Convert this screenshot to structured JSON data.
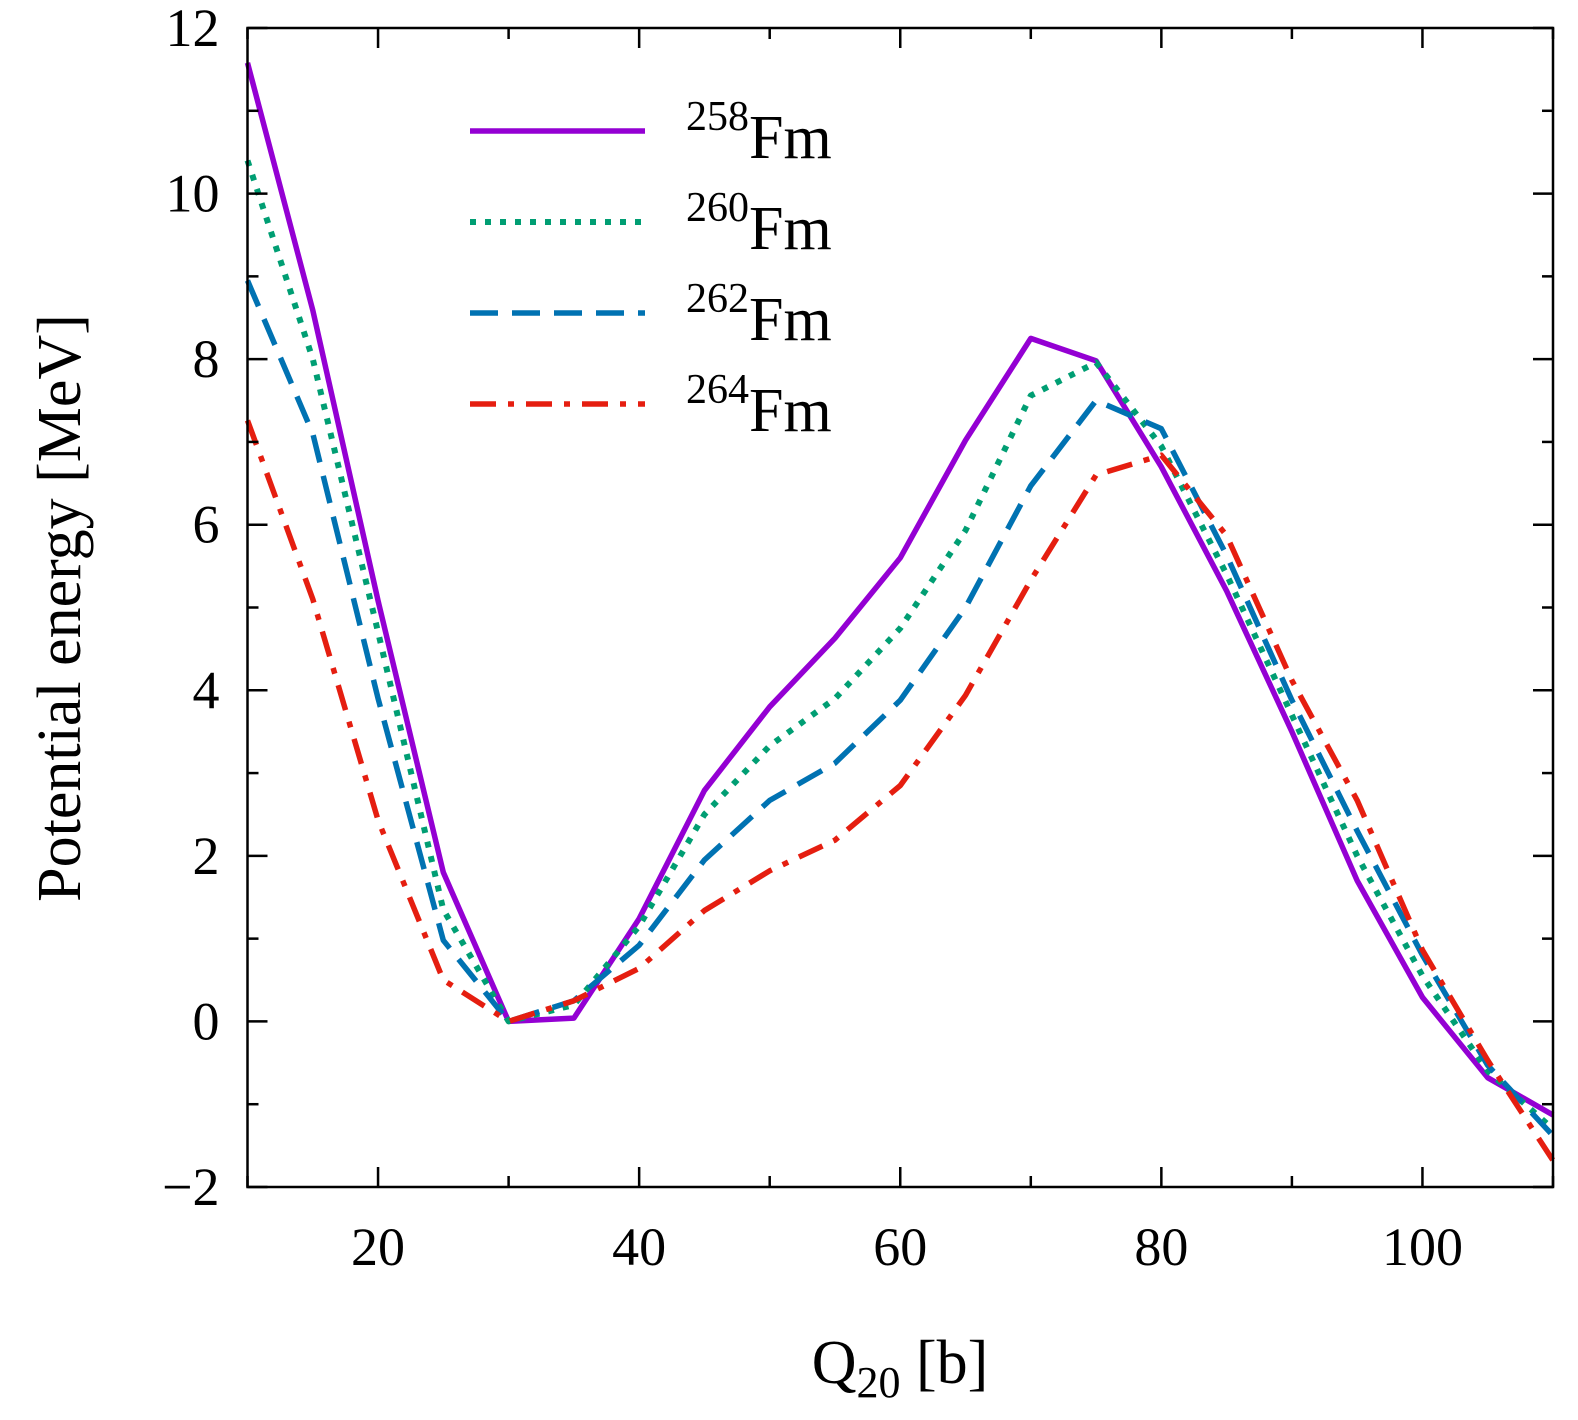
{
  "chart_data": {
    "type": "line",
    "title": "",
    "xlabel": {
      "main": "Q",
      "sub": "20",
      "unit": " [b]"
    },
    "ylabel": "Potential energy [MeV]",
    "xlim": [
      10,
      110
    ],
    "ylim": [
      -2,
      12
    ],
    "xticks": [
      20,
      40,
      60,
      80,
      100
    ],
    "xticklabels": [
      "20",
      "40",
      "60",
      "80",
      "100"
    ],
    "yticks": [
      -2,
      0,
      2,
      4,
      6,
      8,
      10,
      12
    ],
    "yticklabels": [
      "−2",
      "0",
      "2",
      "4",
      "6",
      "8",
      "10",
      "12"
    ],
    "grid": false,
    "legend_position": "top-center",
    "x": [
      10,
      15,
      20,
      25,
      30,
      35,
      40,
      45,
      50,
      55,
      60,
      65,
      70,
      75,
      80,
      85,
      90,
      95,
      100,
      105,
      110
    ],
    "series": [
      {
        "name": "258Fm",
        "mass": "258",
        "element": "Fm",
        "color": "#9400d3",
        "dash": "solid",
        "values": [
          11.58,
          8.59,
          5.08,
          1.8,
          0,
          0.04,
          1.24,
          2.79,
          3.8,
          4.63,
          5.6,
          7.02,
          8.25,
          7.98,
          6.7,
          5.2,
          3.5,
          1.7,
          0.29,
          -0.68,
          -1.13
        ]
      },
      {
        "name": "260Fm",
        "mass": "260",
        "element": "Fm",
        "color": "#009e73",
        "dash": "dotted",
        "values": [
          10.4,
          8.0,
          4.7,
          1.35,
          0,
          0.2,
          1.15,
          2.5,
          3.33,
          3.9,
          4.75,
          5.93,
          7.56,
          7.96,
          6.95,
          5.4,
          3.7,
          2.0,
          0.55,
          -0.6,
          -1.3
        ]
      },
      {
        "name": "262Fm",
        "mass": "262",
        "element": "Fm",
        "color": "#0072b2",
        "dash": "dashed",
        "values": [
          8.95,
          7.1,
          3.9,
          0.98,
          0,
          0.25,
          0.92,
          1.95,
          2.67,
          3.12,
          3.88,
          5.0,
          6.47,
          7.5,
          7.16,
          5.63,
          3.88,
          2.3,
          0.8,
          -0.53,
          -1.38
        ]
      },
      {
        "name": "264Fm",
        "mass": "264",
        "element": "Fm",
        "color": "#e51e10",
        "dash": "dashdot",
        "values": [
          7.26,
          5.1,
          2.43,
          0.5,
          0,
          0.25,
          0.64,
          1.34,
          1.82,
          2.19,
          2.85,
          3.94,
          5.33,
          6.6,
          6.84,
          5.87,
          4.12,
          2.67,
          0.86,
          -0.47,
          -1.68
        ]
      }
    ]
  }
}
